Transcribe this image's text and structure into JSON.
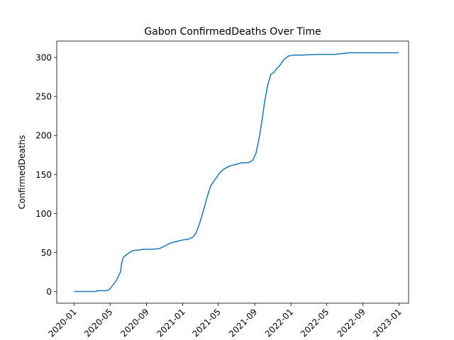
{
  "chart_data": {
    "type": "line",
    "title": "Gabon  ConfirmedDeaths Over Time",
    "xlabel": "",
    "ylabel": "ConfirmedDeaths",
    "x_ticks": [
      "2020-01",
      "2020-05",
      "2020-09",
      "2021-01",
      "2021-05",
      "2021-09",
      "2022-01",
      "2022-05",
      "2022-09",
      "2023-01"
    ],
    "y_ticks": [
      0,
      50,
      100,
      150,
      200,
      250,
      300
    ],
    "xlim": [
      "2019-11-03",
      "2023-02-02"
    ],
    "ylim": [
      -15,
      321
    ],
    "grid": false,
    "legend": "none",
    "line_color": "#1f77b4",
    "series": [
      {
        "x": [
          "2020-01-01",
          "2020-03-12",
          "2020-03-22",
          "2020-04-20",
          "2020-04-30",
          "2020-05-10",
          "2020-05-20",
          "2020-05-30",
          "2020-06-05",
          "2020-06-10",
          "2020-06-15",
          "2020-06-25",
          "2020-07-05",
          "2020-07-15",
          "2020-07-25",
          "2020-08-05",
          "2020-08-20",
          "2020-09-15",
          "2020-10-15",
          "2020-11-05",
          "2020-11-20",
          "2020-12-10",
          "2021-01-01",
          "2021-01-20",
          "2021-02-05",
          "2021-02-15",
          "2021-02-25",
          "2021-03-05",
          "2021-03-15",
          "2021-03-25",
          "2021-04-05",
          "2021-04-15",
          "2021-04-25",
          "2021-05-05",
          "2021-05-20",
          "2021-06-10",
          "2021-06-30",
          "2021-07-20",
          "2021-08-10",
          "2021-08-25",
          "2021-09-05",
          "2021-09-15",
          "2021-09-25",
          "2021-10-05",
          "2021-10-15",
          "2021-10-25",
          "2021-11-05",
          "2021-11-15",
          "2021-11-25",
          "2021-12-10",
          "2021-12-25",
          "2022-01-10",
          "2022-02-01",
          "2022-04-01",
          "2022-06-01",
          "2022-07-15",
          "2022-09-01",
          "2022-11-01",
          "2022-12-31"
        ],
        "y": [
          0,
          0,
          1,
          1,
          3,
          8,
          13,
          20,
          25,
          38,
          44,
          47,
          50,
          52,
          53,
          53,
          54,
          54,
          55,
          59,
          62,
          64,
          66,
          67,
          70,
          75,
          85,
          95,
          108,
          122,
          135,
          141,
          146,
          152,
          157,
          161,
          163,
          165,
          165,
          168,
          177,
          195,
          218,
          245,
          265,
          278,
          281,
          286,
          290,
          298,
          302,
          303,
          303,
          304,
          304,
          306,
          306,
          306,
          306
        ]
      }
    ]
  }
}
